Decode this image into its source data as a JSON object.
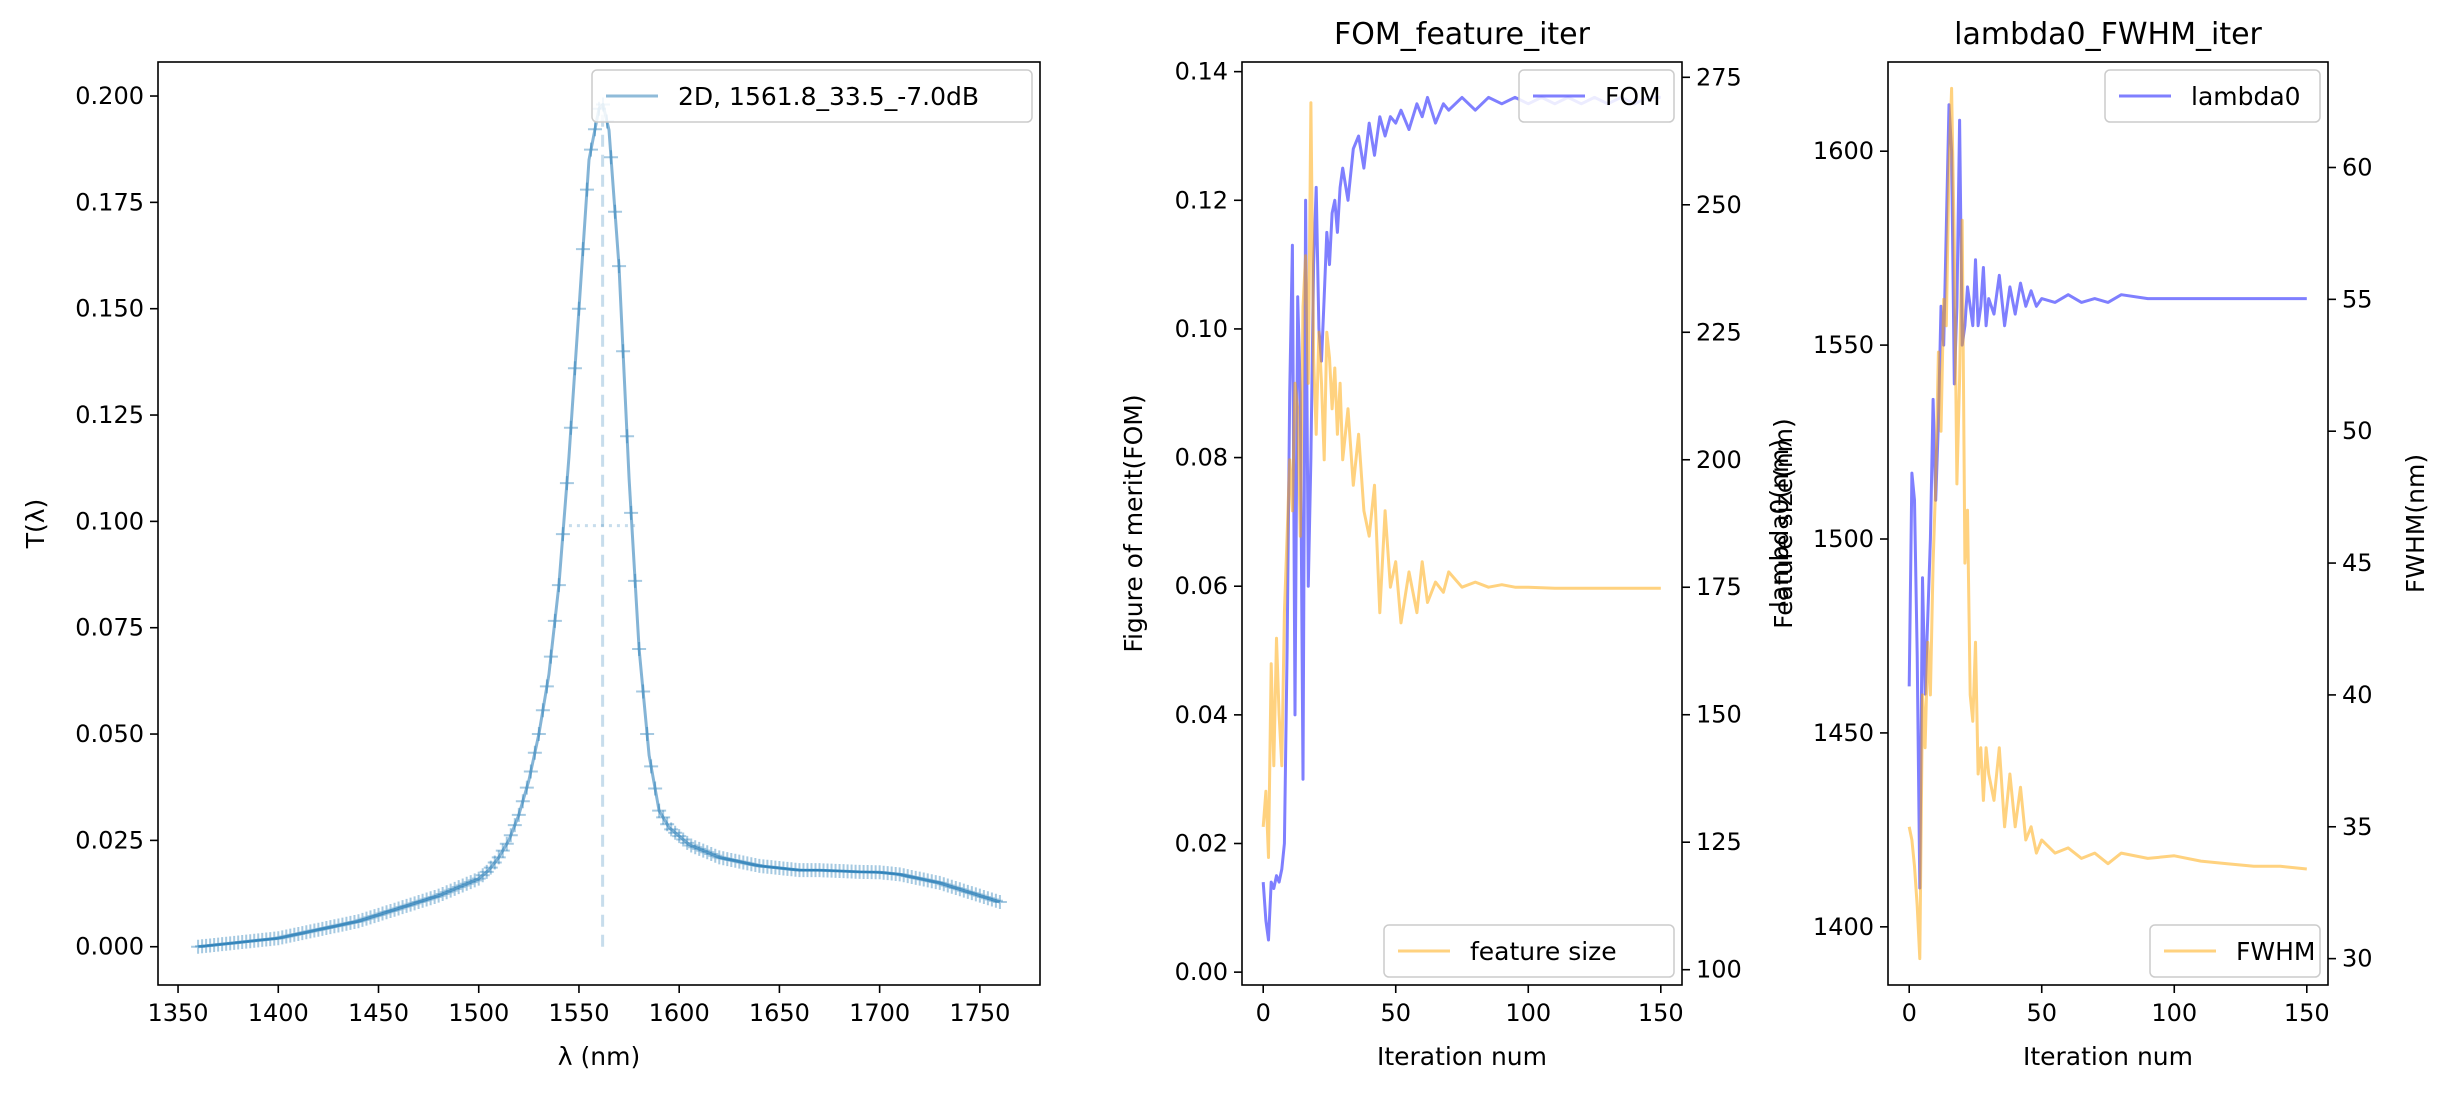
{
  "chart_data": [
    {
      "type": "line",
      "title": "",
      "xlabel": "λ (nm)",
      "ylabel": "T(λ)",
      "xlim": [
        1340,
        1780
      ],
      "ylim": [
        -0.009,
        0.208
      ],
      "xticks": [
        1350,
        1400,
        1450,
        1500,
        1550,
        1600,
        1650,
        1700,
        1750
      ],
      "yticks": [
        0.0,
        0.025,
        0.05,
        0.075,
        0.1,
        0.125,
        0.15,
        0.175,
        0.2
      ],
      "ytick_labels": [
        "0.000",
        "0.025",
        "0.050",
        "0.075",
        "0.100",
        "0.125",
        "0.150",
        "0.175",
        "0.200"
      ],
      "legend_position": "top-right",
      "series": [
        {
          "name": "2D, 1561.8_33.5_-7.0dB",
          "color": "#1f77b4",
          "marker": "+",
          "x": [
            1360,
            1370,
            1380,
            1390,
            1400,
            1410,
            1420,
            1430,
            1440,
            1450,
            1460,
            1470,
            1480,
            1490,
            1500,
            1505,
            1510,
            1515,
            1520,
            1525,
            1530,
            1535,
            1540,
            1545,
            1550,
            1555,
            1560,
            1562,
            1565,
            1570,
            1575,
            1580,
            1585,
            1590,
            1595,
            1600,
            1605,
            1610,
            1620,
            1630,
            1640,
            1650,
            1660,
            1670,
            1680,
            1690,
            1700,
            1710,
            1720,
            1730,
            1740,
            1750,
            1760
          ],
          "y": [
            0.0,
            0.0005,
            0.001,
            0.0015,
            0.002,
            0.003,
            0.004,
            0.005,
            0.006,
            0.0075,
            0.009,
            0.0105,
            0.012,
            0.014,
            0.016,
            0.018,
            0.021,
            0.025,
            0.031,
            0.039,
            0.05,
            0.064,
            0.085,
            0.115,
            0.15,
            0.185,
            0.197,
            0.198,
            0.192,
            0.16,
            0.11,
            0.07,
            0.045,
            0.032,
            0.028,
            0.026,
            0.024,
            0.023,
            0.021,
            0.02,
            0.019,
            0.0185,
            0.018,
            0.018,
            0.0178,
            0.0176,
            0.0175,
            0.017,
            0.016,
            0.015,
            0.0135,
            0.012,
            0.0105
          ]
        }
      ],
      "reference_lines": {
        "peak_x": 1561.8,
        "half_max_y": 0.099
      }
    },
    {
      "type": "line",
      "title": "FOM_feature_iter",
      "xlabel": "Iteration num",
      "ylabel": "Figure of merit(FOM)",
      "y2label": "Feature size(nm)",
      "xlim": [
        -8,
        158
      ],
      "ylim": [
        -0.002,
        0.1415
      ],
      "y2lim": [
        97,
        278
      ],
      "xticks": [
        0,
        50,
        100,
        150
      ],
      "yticks": [
        0.0,
        0.02,
        0.04,
        0.06,
        0.08,
        0.1,
        0.12,
        0.14
      ],
      "ytick_labels": [
        "0.00",
        "0.02",
        "0.04",
        "0.06",
        "0.08",
        "0.10",
        "0.12",
        "0.14"
      ],
      "y2ticks": [
        100,
        125,
        150,
        175,
        200,
        225,
        250,
        275
      ],
      "series": [
        {
          "name": "FOM",
          "axis": "left",
          "color": "#0000ff",
          "legend_position": "top-right",
          "x": [
            0,
            1,
            2,
            3,
            4,
            5,
            6,
            7,
            8,
            9,
            10,
            11,
            12,
            13,
            14,
            15,
            16,
            17,
            18,
            19,
            20,
            21,
            22,
            23,
            24,
            25,
            26,
            27,
            28,
            29,
            30,
            32,
            34,
            36,
            38,
            40,
            42,
            44,
            46,
            48,
            50,
            52,
            55,
            58,
            60,
            62,
            65,
            68,
            70,
            75,
            80,
            85,
            90,
            95,
            100,
            105,
            110,
            115,
            120,
            125,
            130,
            135,
            140,
            145,
            150
          ],
          "y": [
            0.014,
            0.008,
            0.005,
            0.014,
            0.013,
            0.015,
            0.014,
            0.016,
            0.02,
            0.05,
            0.09,
            0.113,
            0.04,
            0.105,
            0.09,
            0.03,
            0.12,
            0.06,
            0.08,
            0.11,
            0.122,
            0.1,
            0.095,
            0.105,
            0.115,
            0.11,
            0.118,
            0.12,
            0.115,
            0.122,
            0.125,
            0.12,
            0.128,
            0.13,
            0.125,
            0.132,
            0.127,
            0.133,
            0.13,
            0.133,
            0.132,
            0.134,
            0.131,
            0.135,
            0.133,
            0.136,
            0.132,
            0.135,
            0.134,
            0.136,
            0.134,
            0.136,
            0.135,
            0.136,
            0.135,
            0.136,
            0.135,
            0.136,
            0.135,
            0.136,
            0.135,
            0.136,
            0.135,
            0.136,
            0.136
          ]
        },
        {
          "name": "feature size",
          "axis": "right",
          "color": "#ffa500",
          "legend_position": "bottom-right",
          "x": [
            0,
            1,
            2,
            3,
            4,
            5,
            6,
            7,
            8,
            9,
            10,
            11,
            12,
            13,
            14,
            15,
            16,
            17,
            18,
            19,
            20,
            21,
            22,
            23,
            24,
            25,
            26,
            27,
            28,
            29,
            30,
            32,
            34,
            36,
            38,
            40,
            42,
            44,
            46,
            48,
            50,
            52,
            55,
            58,
            60,
            62,
            65,
            68,
            70,
            75,
            80,
            85,
            90,
            95,
            100,
            110,
            120,
            130,
            140,
            150
          ],
          "y": [
            128,
            135,
            122,
            160,
            140,
            165,
            150,
            140,
            170,
            185,
            200,
            190,
            215,
            210,
            185,
            230,
            240,
            215,
            270,
            220,
            205,
            225,
            215,
            200,
            225,
            220,
            210,
            218,
            205,
            215,
            200,
            210,
            195,
            205,
            190,
            185,
            195,
            170,
            190,
            175,
            180,
            168,
            178,
            170,
            180,
            172,
            176,
            174,
            178,
            175,
            176,
            175,
            175.5,
            175,
            175,
            174.8,
            174.8,
            174.8,
            174.8,
            174.8
          ]
        }
      ]
    },
    {
      "type": "line",
      "title": "lambda0_FWHM_iter",
      "xlabel": "Iteration num",
      "ylabel": "lambda0(nm)",
      "y2label": "FWHM(nm)",
      "xlim": [
        -8,
        158
      ],
      "ylim": [
        1385,
        1623
      ],
      "y2lim": [
        29,
        64
      ],
      "xticks": [
        0,
        50,
        100,
        150
      ],
      "yticks": [
        1400,
        1450,
        1500,
        1550,
        1600
      ],
      "y2ticks": [
        30,
        35,
        40,
        45,
        50,
        55,
        60
      ],
      "series": [
        {
          "name": "lambda0",
          "axis": "left",
          "color": "#0000ff",
          "legend_position": "top-right",
          "x": [
            0,
            1,
            2,
            3,
            4,
            5,
            6,
            7,
            8,
            9,
            10,
            11,
            12,
            13,
            14,
            15,
            16,
            17,
            18,
            19,
            20,
            21,
            22,
            23,
            24,
            25,
            26,
            27,
            28,
            29,
            30,
            32,
            34,
            36,
            38,
            40,
            42,
            44,
            46,
            48,
            50,
            55,
            60,
            65,
            70,
            75,
            80,
            90,
            100,
            110,
            120,
            130,
            140,
            150
          ],
          "y": [
            1462,
            1517,
            1510,
            1470,
            1410,
            1490,
            1460,
            1480,
            1500,
            1536,
            1510,
            1530,
            1560,
            1550,
            1580,
            1612,
            1600,
            1540,
            1560,
            1608,
            1550,
            1555,
            1565,
            1560,
            1555,
            1572,
            1555,
            1560,
            1570,
            1555,
            1562,
            1558,
            1568,
            1555,
            1565,
            1558,
            1566,
            1560,
            1564,
            1560,
            1562,
            1561,
            1563,
            1561,
            1562,
            1561,
            1563,
            1562,
            1562,
            1562,
            1562,
            1562,
            1562,
            1562
          ]
        },
        {
          "name": "FWHM",
          "axis": "right",
          "color": "#ffa500",
          "legend_position": "bottom-right",
          "x": [
            0,
            1,
            2,
            3,
            4,
            5,
            6,
            7,
            8,
            9,
            10,
            11,
            12,
            13,
            14,
            15,
            16,
            17,
            18,
            19,
            20,
            21,
            22,
            23,
            24,
            25,
            26,
            27,
            28,
            29,
            30,
            32,
            34,
            36,
            38,
            40,
            42,
            44,
            46,
            48,
            50,
            55,
            60,
            65,
            70,
            75,
            80,
            90,
            100,
            110,
            120,
            130,
            140,
            150
          ],
          "y": [
            35,
            34.5,
            33.5,
            32,
            30,
            40,
            38,
            42,
            40,
            45,
            48,
            53,
            50,
            55,
            54,
            60,
            63,
            57,
            48,
            52,
            58,
            45,
            47,
            40,
            39,
            42,
            37,
            38,
            36,
            38,
            37,
            36,
            38,
            35,
            37,
            35,
            36.5,
            34.5,
            35,
            34,
            34.5,
            34,
            34.2,
            33.8,
            34,
            33.6,
            34,
            33.8,
            33.9,
            33.7,
            33.6,
            33.5,
            33.5,
            33.4
          ]
        }
      ]
    }
  ]
}
